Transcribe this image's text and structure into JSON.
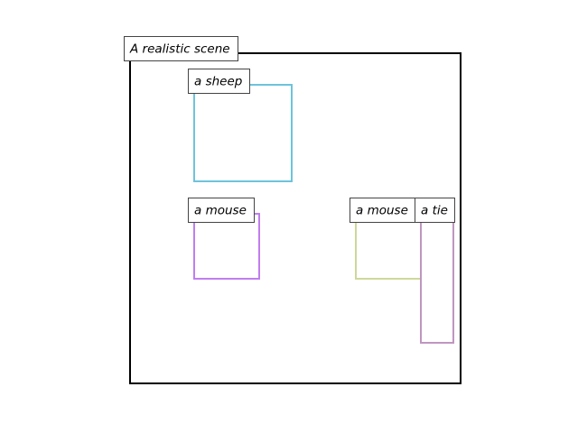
{
  "scene": {
    "title": "A realistic scene",
    "frame_color": "#000000"
  },
  "regions": [
    {
      "id": "sheep",
      "label": "a sheep",
      "color": "#6ec3dd"
    },
    {
      "id": "mouse-1",
      "label": "a mouse",
      "color": "#c07ef0"
    },
    {
      "id": "mouse-2",
      "label": "a mouse",
      "color": "#cdd89a"
    },
    {
      "id": "tie",
      "label": "a tie",
      "color": "#bf96c0"
    }
  ]
}
